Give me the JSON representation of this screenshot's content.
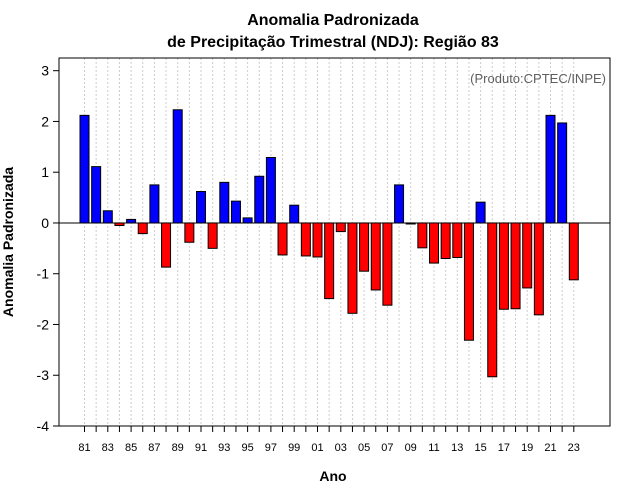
{
  "chart_data": {
    "type": "bar",
    "title": [
      "Anomalia Padronizada",
      "de Precipitação Trimestral (NDJ): Região 83"
    ],
    "xlabel": "Ano",
    "ylabel": "Anomalia Padronizada",
    "credit": "(Produto:CPTEC/INPE)",
    "ylim": [
      -4,
      3.25
    ],
    "yticks": [
      -4,
      -3,
      -2,
      -1,
      0,
      1,
      2,
      3
    ],
    "positive_color": "#0000ff",
    "negative_color": "#ff0000",
    "categories": [
      "81",
      "82",
      "83",
      "84",
      "85",
      "86",
      "87",
      "88",
      "89",
      "90",
      "91",
      "92",
      "93",
      "94",
      "95",
      "96",
      "97",
      "98",
      "99",
      "00",
      "01",
      "02",
      "03",
      "04",
      "05",
      "06",
      "07",
      "08",
      "09",
      "10",
      "11",
      "12",
      "13",
      "14",
      "15",
      "16",
      "17",
      "18",
      "19",
      "20",
      "21",
      "22",
      "23"
    ],
    "xtick_labels": [
      "81",
      "83",
      "85",
      "87",
      "89",
      "91",
      "93",
      "95",
      "97",
      "99",
      "01",
      "03",
      "05",
      "07",
      "09",
      "11",
      "13",
      "15",
      "17",
      "19",
      "21",
      "23"
    ],
    "values": [
      2.12,
      1.11,
      0.24,
      -0.05,
      0.07,
      -0.21,
      0.75,
      -0.87,
      2.23,
      -0.38,
      0.62,
      -0.5,
      0.8,
      0.43,
      0.1,
      0.92,
      1.29,
      -0.63,
      0.35,
      -0.65,
      -0.67,
      -1.49,
      -0.17,
      -1.78,
      -0.95,
      -1.32,
      -1.62,
      0.75,
      -0.02,
      -0.49,
      -0.79,
      -0.7,
      -0.68,
      -2.31,
      0.41,
      -3.03,
      -1.7,
      -1.69,
      -1.28,
      -1.81,
      2.12,
      1.97,
      -1.12
    ]
  }
}
